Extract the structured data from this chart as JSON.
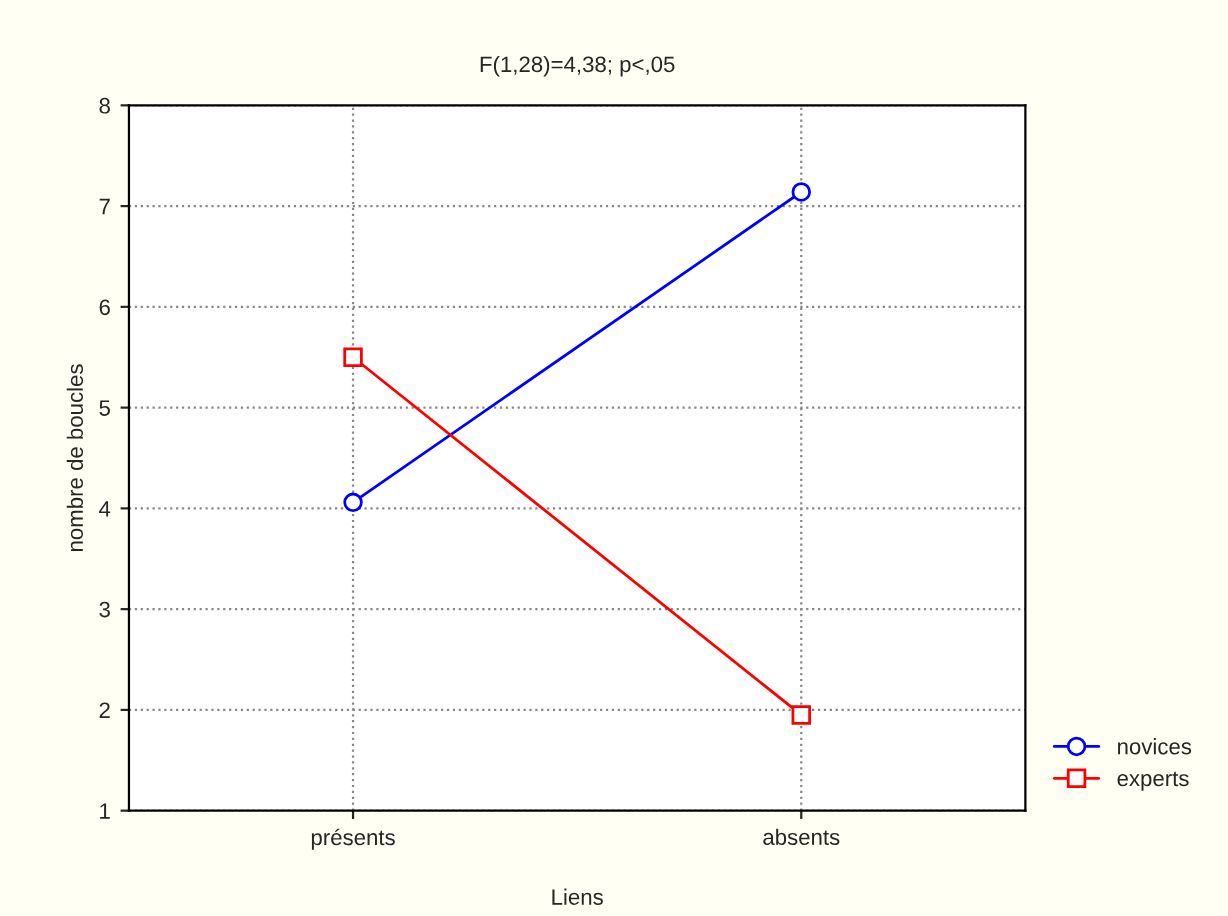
{
  "chart_data": {
    "type": "line",
    "title": "F(1,28)=4,38; p<,05",
    "xlabel": "Liens",
    "ylabel": "nombre de boucles",
    "categories": [
      "présents",
      "absents"
    ],
    "series": [
      {
        "name": "novices",
        "color": "#0000ff",
        "values": [
          4.06,
          7.14
        ],
        "marker": "circle"
      },
      {
        "name": "experts",
        "color": "#ff0000",
        "values": [
          5.5,
          1.95
        ],
        "marker": "square"
      }
    ],
    "ylim": [
      1,
      8
    ],
    "yticks": [
      1,
      2,
      3,
      4,
      5,
      6,
      7,
      8
    ],
    "grid": true,
    "legend": "bottom right",
    "line_style": "solid"
  }
}
